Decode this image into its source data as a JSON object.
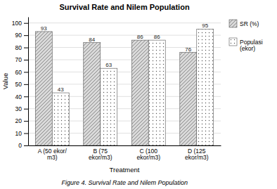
{
  "chart_data": {
    "type": "bar",
    "title": "Survival Rate and Nilem Population",
    "x_label": "Treatment",
    "y_label": "Value",
    "caption": "Figure 4. Survival Rate and Nilem Population",
    "categories": [
      "A (50 ekor/\nm3)",
      "B (75\nekor/m3)",
      "C (100\nekor/m3)",
      "D (125\nekor/m3)"
    ],
    "series": [
      {
        "name": "SR (%)",
        "color": "#d9d9d9",
        "values": [
          93,
          84,
          86,
          76
        ]
      },
      {
        "name": "Populasi\n(ekor)",
        "color": "white",
        "values": [
          43,
          63,
          86,
          95
        ]
      }
    ],
    "ylim": [
      0,
      105
    ],
    "yticks": [
      0,
      10,
      20,
      30,
      40,
      50,
      60,
      70,
      80,
      90,
      100
    ],
    "grid": true,
    "legend": "right",
    "data_labels": true
  }
}
